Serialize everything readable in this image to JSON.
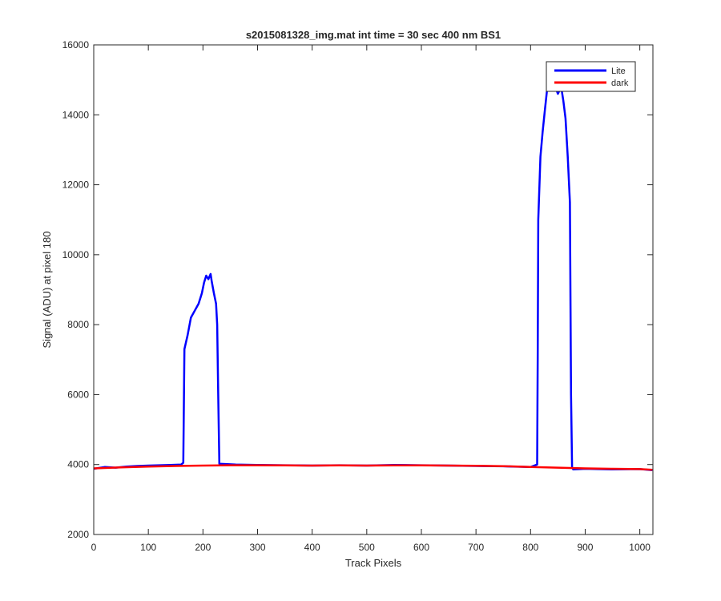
{
  "chart_data": {
    "type": "line",
    "title": "s2015081328_img.mat int time = 30 sec  400 nm BS1",
    "xlabel": "Track Pixels",
    "ylabel": "Signal (ADU) at pixel 180",
    "xlim": [
      0,
      1024
    ],
    "ylim": [
      2000,
      16000
    ],
    "xticks": [
      0,
      100,
      200,
      300,
      400,
      500,
      600,
      700,
      800,
      900,
      1000
    ],
    "yticks": [
      2000,
      4000,
      6000,
      8000,
      10000,
      12000,
      14000,
      16000
    ],
    "grid": false,
    "legend_position": "top-right",
    "series": [
      {
        "name": "Lite",
        "color": "#0000ff",
        "x": [
          0,
          20,
          40,
          60,
          80,
          100,
          120,
          140,
          160,
          164,
          166,
          172,
          178,
          185,
          192,
          198,
          202,
          206,
          210,
          214,
          216,
          220,
          224,
          226,
          228,
          230,
          260,
          300,
          350,
          400,
          450,
          500,
          550,
          600,
          650,
          700,
          750,
          800,
          812,
          813,
          814,
          818,
          822,
          826,
          830,
          834,
          838,
          844,
          850,
          856,
          860,
          864,
          868,
          872,
          874,
          876,
          878,
          900,
          950,
          1000,
          1023
        ],
        "y": [
          3880,
          3930,
          3910,
          3940,
          3960,
          3970,
          3980,
          3990,
          4000,
          4050,
          7300,
          7700,
          8200,
          8400,
          8600,
          8900,
          9200,
          9400,
          9300,
          9450,
          9250,
          8900,
          8600,
          8000,
          6000,
          4020,
          4000,
          3990,
          3980,
          3970,
          3980,
          3970,
          3990,
          3980,
          3970,
          3960,
          3950,
          3930,
          4000,
          7000,
          11000,
          12800,
          13500,
          14100,
          14700,
          14900,
          14750,
          14850,
          14600,
          14800,
          14400,
          13900,
          12800,
          11500,
          6000,
          3920,
          3860,
          3880,
          3860,
          3870,
          3840
        ]
      },
      {
        "name": "dark",
        "color": "#ff0000",
        "x": [
          0,
          50,
          100,
          150,
          200,
          250,
          300,
          350,
          400,
          450,
          500,
          550,
          600,
          650,
          700,
          750,
          800,
          850,
          900,
          950,
          1000,
          1023
        ],
        "y": [
          3890,
          3920,
          3940,
          3960,
          3970,
          3980,
          3980,
          3975,
          3970,
          3975,
          3970,
          3975,
          3975,
          3970,
          3965,
          3955,
          3930,
          3910,
          3890,
          3880,
          3870,
          3850
        ]
      }
    ]
  }
}
